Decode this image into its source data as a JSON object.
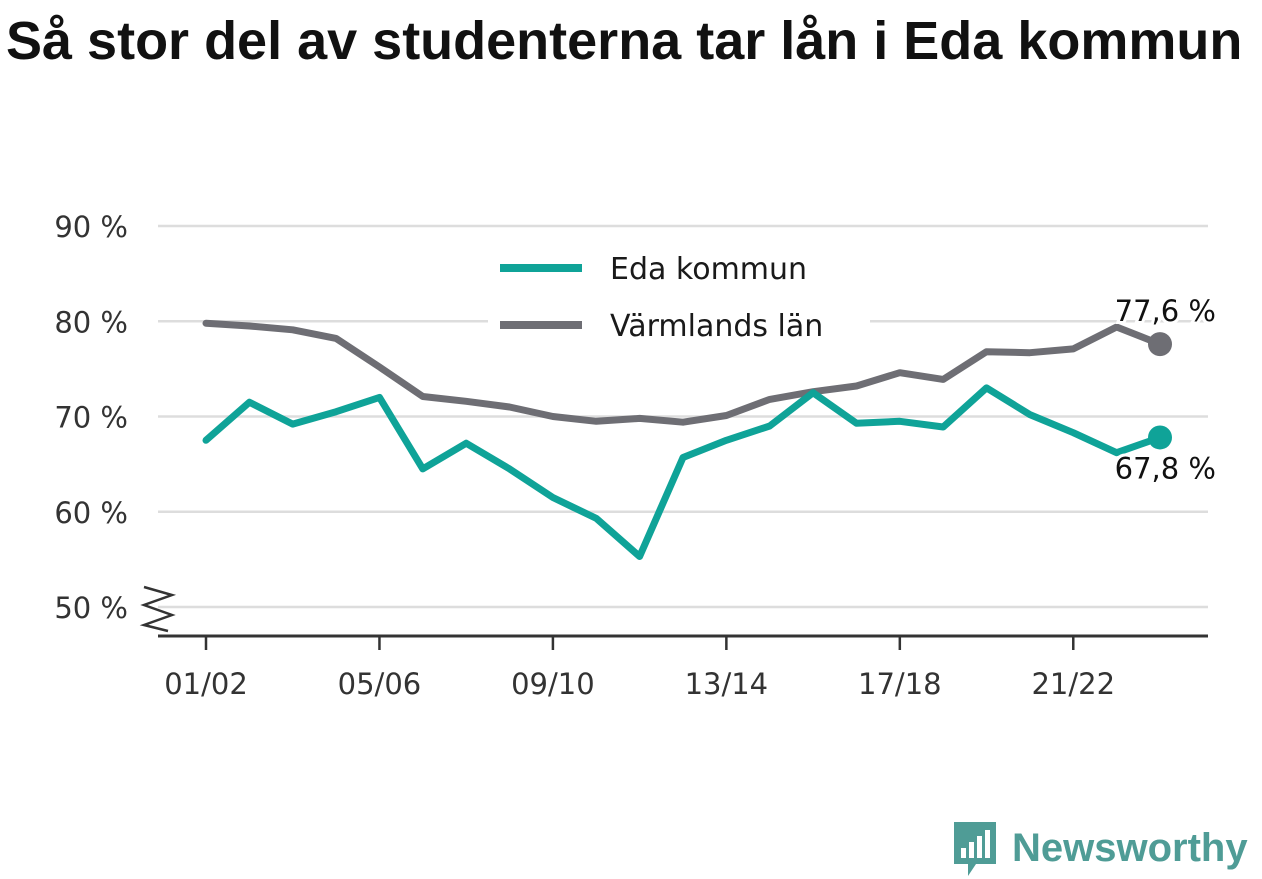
{
  "title": "Så stor del av studenterna tar lån i Eda kommun",
  "brand": {
    "name": "Newsworthy",
    "color": "#4f9c96"
  },
  "colors": {
    "eda": "#0fa398",
    "varmland": "#6e6e74",
    "grid": "#dddddd",
    "axis": "#333333"
  },
  "chart_data": {
    "type": "line",
    "title": "Så stor del av studenterna tar lån i Eda kommun",
    "xlabel": "",
    "ylabel": "",
    "ylim": [
      50,
      90
    ],
    "y_ticks": [
      90,
      80,
      70,
      60,
      50
    ],
    "y_tick_labels": [
      "90 %",
      "80 %",
      "70 %",
      "60 %",
      "50 %"
    ],
    "y_axis_break": true,
    "grid": true,
    "legend_position": "top-center",
    "x": [
      "01/02",
      "02/03",
      "03/04",
      "04/05",
      "05/06",
      "06/07",
      "07/08",
      "08/09",
      "09/10",
      "10/11",
      "11/12",
      "12/13",
      "13/14",
      "14/15",
      "15/16",
      "16/17",
      "17/18",
      "18/19",
      "19/20",
      "20/21",
      "21/22",
      "22/23",
      "23/24"
    ],
    "x_tick_labels": [
      "01/02",
      "05/06",
      "09/10",
      "13/14",
      "17/18",
      "21/22"
    ],
    "series": [
      {
        "name": "Eda kommun",
        "color": "#0fa398",
        "values": [
          67.5,
          71.5,
          69.2,
          70.5,
          72.0,
          64.5,
          67.2,
          64.5,
          61.5,
          59.3,
          55.3,
          65.7,
          67.5,
          69.0,
          72.5,
          69.3,
          69.5,
          68.9,
          73.0,
          70.2,
          68.3,
          66.2,
          67.8
        ],
        "end_label": "67,8 %"
      },
      {
        "name": "Värmlands län",
        "color": "#6e6e74",
        "values": [
          79.8,
          79.5,
          79.1,
          78.2,
          75.2,
          72.1,
          71.6,
          71.0,
          70.0,
          69.5,
          69.8,
          69.4,
          70.1,
          71.8,
          72.6,
          73.2,
          74.6,
          73.9,
          76.8,
          76.7,
          77.1,
          79.4,
          77.6
        ],
        "end_label": "77,6 %"
      }
    ]
  }
}
